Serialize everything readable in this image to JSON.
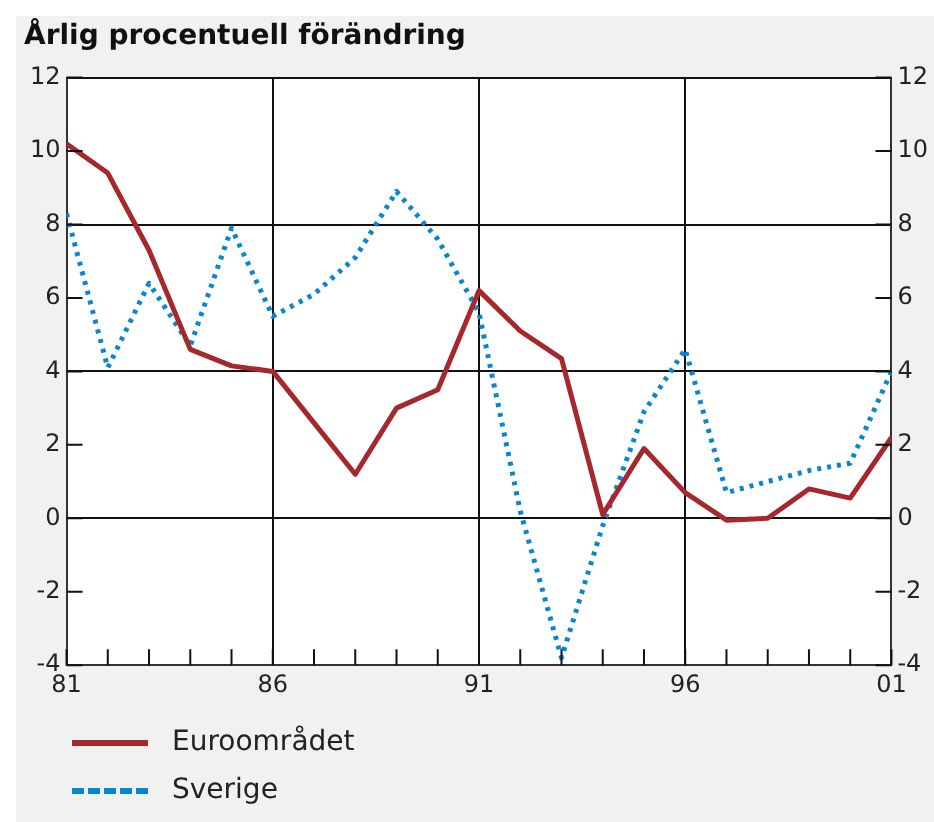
{
  "chart_data": {
    "type": "line",
    "title": "Årlig procentuell förändring",
    "x": [
      1981,
      1982,
      1983,
      1984,
      1985,
      1986,
      1987,
      1988,
      1989,
      1990,
      1991,
      1992,
      1993,
      1994,
      1995,
      1996,
      1997,
      1998,
      1999,
      2000,
      2001
    ],
    "series": [
      {
        "name": "Euroområdet",
        "color": "#a5282c",
        "line_style": "solid",
        "values": [
          10.2,
          9.4,
          7.3,
          4.6,
          4.15,
          4.0,
          2.6,
          1.2,
          3.0,
          3.5,
          6.2,
          5.1,
          4.35,
          0.1,
          1.9,
          0.7,
          -0.05,
          0.0,
          0.8,
          0.55,
          2.2
        ]
      },
      {
        "name": "Sverige",
        "color": "#0a86d0",
        "line_style": "dotted",
        "values": [
          8.3,
          4.1,
          6.4,
          4.7,
          7.9,
          5.5,
          6.1,
          7.1,
          8.9,
          7.6,
          5.6,
          0.2,
          -3.8,
          -0.2,
          2.9,
          4.6,
          0.7,
          1.0,
          1.3,
          1.5,
          4.0
        ]
      }
    ],
    "xlim": [
      1981,
      2001
    ],
    "xticks": [
      {
        "value": 1981,
        "label": "81"
      },
      {
        "value": 1982,
        "label": null
      },
      {
        "value": 1983,
        "label": null
      },
      {
        "value": 1984,
        "label": null
      },
      {
        "value": 1985,
        "label": null
      },
      {
        "value": 1986,
        "label": "86"
      },
      {
        "value": 1987,
        "label": null
      },
      {
        "value": 1988,
        "label": null
      },
      {
        "value": 1989,
        "label": null
      },
      {
        "value": 1990,
        "label": null
      },
      {
        "value": 1991,
        "label": "91"
      },
      {
        "value": 1992,
        "label": null
      },
      {
        "value": 1993,
        "label": null
      },
      {
        "value": 1994,
        "label": null
      },
      {
        "value": 1995,
        "label": null
      },
      {
        "value": 1996,
        "label": "96"
      },
      {
        "value": 1997,
        "label": null
      },
      {
        "value": 1998,
        "label": null
      },
      {
        "value": 1999,
        "label": null
      },
      {
        "value": 2000,
        "label": null
      },
      {
        "value": 2001,
        "label": "01"
      }
    ],
    "ylim": [
      -4,
      12
    ],
    "yticks": [
      -4,
      -2,
      0,
      2,
      4,
      6,
      8,
      10,
      12
    ],
    "y2lim": [
      -4,
      12
    ],
    "y2ticks": [
      -4,
      -2,
      0,
      2,
      4,
      6,
      8,
      10,
      12
    ],
    "grid": true,
    "legend": "bottom",
    "marker": "none"
  }
}
